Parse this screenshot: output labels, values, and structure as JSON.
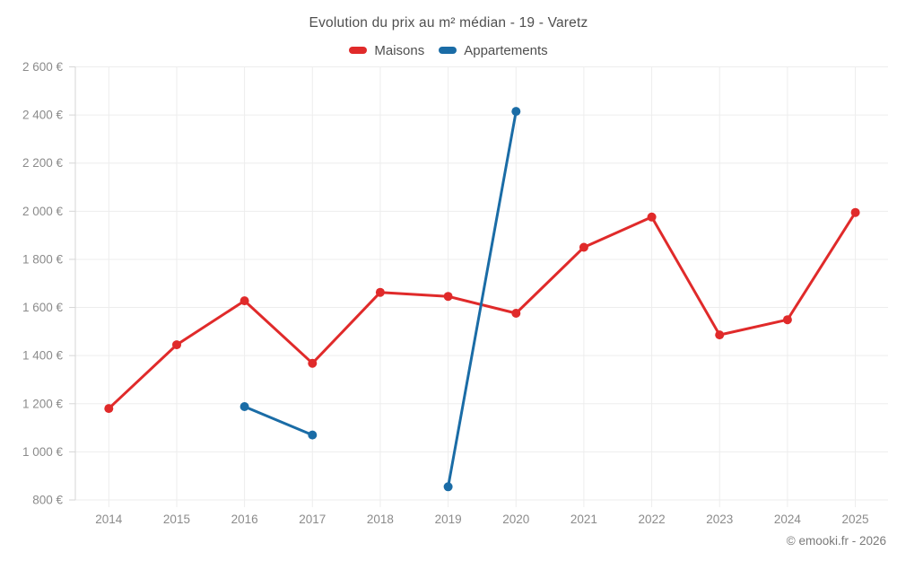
{
  "header": {
    "title": "Evolution du prix au m² médian - 19 - Varetz"
  },
  "legend": {
    "items": [
      {
        "label": "Maisons",
        "color": "#e02a2a"
      },
      {
        "label": "Appartements",
        "color": "#1a6ca6"
      }
    ]
  },
  "footer": {
    "copyright": "© emooki.fr - 2026"
  },
  "colors": {
    "maisons_red": "#e02a2a",
    "appartements_blue": "#1a6ca6",
    "gridline": "#ededed",
    "axis_line": "#d6d6d6",
    "tick_label": "#8b8b8b",
    "title_text": "#4f4f4f",
    "background": "#ffffff"
  },
  "chart_data": {
    "type": "line",
    "title": "Evolution du prix au m² médian - 19 - Varetz",
    "xlabel": "",
    "ylabel": "",
    "grid": true,
    "legend_position": "top",
    "x": [
      2014,
      2015,
      2016,
      2017,
      2018,
      2019,
      2020,
      2021,
      2022,
      2023,
      2024,
      2025
    ],
    "x_tick_labels": [
      "2014",
      "2015",
      "2016",
      "2017",
      "2018",
      "2019",
      "2020",
      "2021",
      "2022",
      "2023",
      "2024",
      "2025"
    ],
    "ylim": [
      800,
      2600
    ],
    "y_ticks": [
      800,
      1000,
      1200,
      1400,
      1600,
      1800,
      2000,
      2200,
      2400,
      2600
    ],
    "y_tick_labels": [
      "800 €",
      "1 000 €",
      "1 200 €",
      "1 400 €",
      "1 600 €",
      "1 800 €",
      "2 000 €",
      "2 200 €",
      "2 400 €",
      "2 600 €"
    ],
    "series": [
      {
        "name": "Maisons",
        "color": "#e02a2a",
        "values": [
          1180,
          1445,
          1628,
          1368,
          1663,
          1646,
          1576,
          1850,
          1976,
          1486,
          1549,
          1995
        ]
      },
      {
        "name": "Appartements",
        "color": "#1a6ca6",
        "values": [
          null,
          null,
          1188,
          1070,
          null,
          855,
          2415,
          null,
          null,
          null,
          null,
          null
        ]
      }
    ]
  }
}
